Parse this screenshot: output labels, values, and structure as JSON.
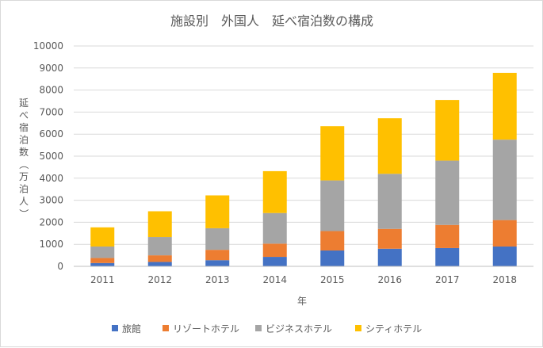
{
  "chart_data": {
    "type": "bar",
    "stacked": true,
    "title": "施設別　外国人　延べ宿泊数の構成",
    "xlabel": "年",
    "ylabel": "延べ宿泊数（万泊人）",
    "ylim": [
      0,
      10000
    ],
    "yticks": [
      0,
      1000,
      2000,
      3000,
      4000,
      5000,
      6000,
      7000,
      8000,
      9000,
      10000
    ],
    "grid": true,
    "legend_position": "bottom",
    "categories": [
      "2011",
      "2012",
      "2013",
      "2014",
      "2015",
      "2016",
      "2017",
      "2018"
    ],
    "series": [
      {
        "name": "旅館",
        "color": "#4472C4",
        "values": [
          150,
          200,
          280,
          430,
          720,
          800,
          830,
          900
        ]
      },
      {
        "name": "リゾートホテル",
        "color": "#ED7D31",
        "values": [
          230,
          300,
          470,
          600,
          880,
          900,
          1050,
          1200
        ]
      },
      {
        "name": "ビジネスホテル",
        "color": "#A5A5A5",
        "values": [
          520,
          830,
          980,
          1390,
          2300,
          2500,
          2920,
          3650
        ]
      },
      {
        "name": "シティホテル",
        "color": "#FFC000",
        "values": [
          870,
          1170,
          1490,
          1900,
          2460,
          2520,
          2750,
          3030
        ]
      }
    ]
  }
}
